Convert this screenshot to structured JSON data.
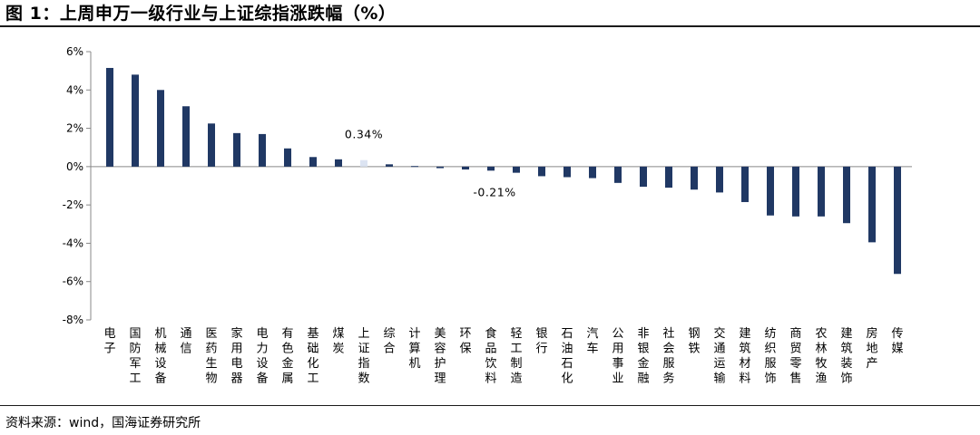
{
  "header": {
    "title": "图 1：上周申万一级行业与上证综指涨跌幅（%）"
  },
  "footer": {
    "source": "资料来源：wind，国海证券研究所"
  },
  "colors": {
    "bar": "#203864",
    "highlight_bar": "#dce4f2",
    "axis": "#888888"
  },
  "chart_data": {
    "type": "bar",
    "title": "上周申万一级行业与上证综指涨跌幅（%）",
    "xlabel": "",
    "ylabel": "",
    "ylim": [
      -8,
      6
    ],
    "yticks": [
      6,
      4,
      2,
      0,
      -2,
      -4,
      -6,
      -8
    ],
    "ytick_labels": [
      "6%",
      "4%",
      "2%",
      "0%",
      "-2%",
      "-4%",
      "-6%",
      "-8%"
    ],
    "grid": false,
    "legend": "none",
    "categories": [
      "电子",
      "国防军工",
      "机械设备",
      "通信",
      "医药生物",
      "家用电器",
      "电力设备",
      "有色金属",
      "基础化工",
      "煤炭",
      "上证指数",
      "综合",
      "计算机",
      "美容护理",
      "环保",
      "食品饮料",
      "轻工制造",
      "银行",
      "石油石化",
      "汽车",
      "公用事业",
      "非银金融",
      "社会服务",
      "钢铁",
      "交通运输",
      "建筑材料",
      "纺织服饰",
      "商贸零售",
      "农林牧渔",
      "建筑装饰",
      "房地产",
      "传媒"
    ],
    "values": [
      5.15,
      4.8,
      4.0,
      3.15,
      2.25,
      1.75,
      1.7,
      0.95,
      0.5,
      0.38,
      0.34,
      0.12,
      0.03,
      -0.08,
      -0.15,
      -0.21,
      -0.32,
      -0.5,
      -0.55,
      -0.6,
      -0.85,
      -1.05,
      -1.1,
      -1.2,
      -1.35,
      -1.85,
      -2.55,
      -2.6,
      -2.6,
      -2.95,
      -3.95,
      -5.6
    ],
    "highlight_category": "上证指数",
    "data_labels": [
      {
        "category": "上证指数",
        "text": "0.34%"
      },
      {
        "category": "食品饮料",
        "text": "-0.21%"
      }
    ]
  }
}
